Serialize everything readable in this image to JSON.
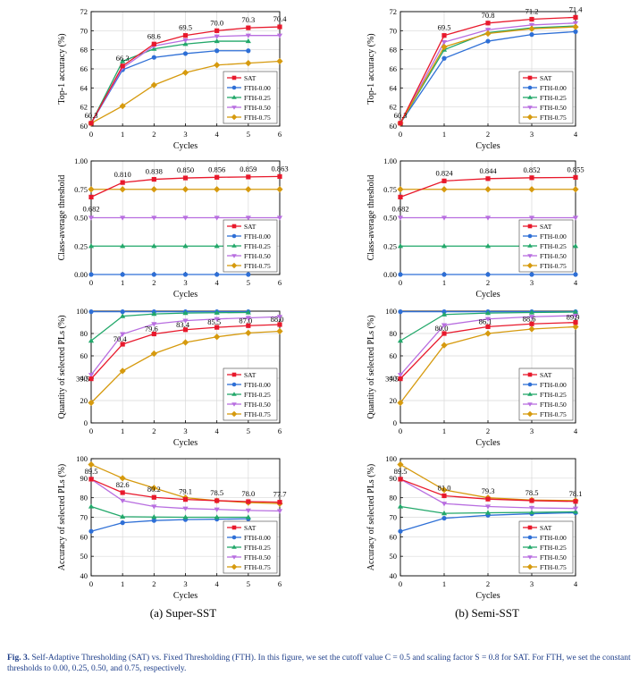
{
  "figure": {
    "subcaptions": [
      "(a) Super-SST",
      "(b) Semi-SST"
    ],
    "caption_label": "Fig. 3.",
    "caption_text": "Self-Adaptive Thresholding (SAT) vs. Fixed Thresholding (FTH). In this figure, we set the cutoff value C = 0.5 and scaling factor S = 0.8 for SAT. For FTH, we set the constant thresholds to 0.00, 0.25, 0.50, and 0.75, respectively."
  },
  "legend_entries": [
    "SAT",
    "FTH-0.00",
    "FTH-0.25",
    "FTH-0.50",
    "FTH-0.75"
  ],
  "colors": {
    "SAT": "#e8192c",
    "FTH-0.00": "#2e6fd6",
    "FTH-0.25": "#22a86a",
    "FTH-0.50": "#b86ee0",
    "FTH-0.75": "#d69a0e",
    "grid": "#d8d8d8"
  },
  "chart_data": [
    {
      "id": "a-top1",
      "type": "line",
      "panel": "Super-SST",
      "xlabel": "Cycles",
      "ylabel": "Top-1 accuracy (%)",
      "xlim": [
        0,
        6
      ],
      "ylim": [
        60,
        72
      ],
      "xticks": [
        "0",
        "1",
        "2",
        "3",
        "4",
        "5",
        "6"
      ],
      "yticks": [
        "60",
        "62",
        "64",
        "66",
        "68",
        "70",
        "72"
      ],
      "legend_position": "bottom-right",
      "series": [
        {
          "name": "SAT",
          "x": [
            0,
            1,
            2,
            3,
            4,
            5,
            6
          ],
          "values": [
            60.3,
            66.3,
            68.6,
            69.5,
            70.0,
            70.3,
            70.4
          ],
          "labels": [
            "60.3",
            "66.3",
            "68.6",
            "69.5",
            "70.0",
            "70.3",
            "70.4"
          ]
        },
        {
          "name": "FTH-0.00",
          "x": [
            0,
            1,
            2,
            3,
            4,
            5
          ],
          "values": [
            60.3,
            65.9,
            67.2,
            67.6,
            67.9,
            67.9
          ]
        },
        {
          "name": "FTH-0.25",
          "x": [
            0,
            1,
            2,
            3,
            4,
            5
          ],
          "values": [
            60.3,
            66.8,
            68.1,
            68.6,
            68.9,
            68.9
          ]
        },
        {
          "name": "FTH-0.50",
          "x": [
            0,
            1,
            2,
            3,
            4,
            5,
            6
          ],
          "values": [
            60.3,
            66.1,
            68.4,
            69.0,
            69.4,
            69.5,
            69.5
          ]
        },
        {
          "name": "FTH-0.75",
          "x": [
            0,
            1,
            2,
            3,
            4,
            5,
            6
          ],
          "values": [
            60.3,
            62.1,
            64.3,
            65.6,
            66.4,
            66.6,
            66.8
          ]
        }
      ]
    },
    {
      "id": "b-top1",
      "type": "line",
      "panel": "Semi-SST",
      "xlabel": "Cycles",
      "ylabel": "Top-1 accuracy (%)",
      "xlim": [
        0,
        4
      ],
      "ylim": [
        60,
        72
      ],
      "xticks": [
        "0",
        "1",
        "2",
        "3",
        "4"
      ],
      "yticks": [
        "60",
        "62",
        "64",
        "66",
        "68",
        "70",
        "72"
      ],
      "legend_position": "bottom-right",
      "series": [
        {
          "name": "SAT",
          "x": [
            0,
            1,
            2,
            3,
            4
          ],
          "values": [
            60.3,
            69.5,
            70.8,
            71.2,
            71.4
          ],
          "labels": [
            "60.3",
            "69.5",
            "70.8",
            "71.2",
            "71.4"
          ]
        },
        {
          "name": "FTH-0.00",
          "x": [
            0,
            1,
            2,
            3,
            4
          ],
          "values": [
            60.3,
            67.1,
            68.9,
            69.6,
            69.9
          ]
        },
        {
          "name": "FTH-0.25",
          "x": [
            0,
            1,
            2,
            3,
            4
          ],
          "values": [
            60.3,
            68.0,
            69.8,
            70.3,
            70.5
          ]
        },
        {
          "name": "FTH-0.50",
          "x": [
            0,
            1,
            2,
            3,
            4
          ],
          "values": [
            60.3,
            68.8,
            70.1,
            70.6,
            70.8
          ]
        },
        {
          "name": "FTH-0.75",
          "x": [
            0,
            1,
            2,
            3,
            4
          ],
          "values": [
            60.3,
            68.3,
            69.7,
            70.2,
            70.4
          ]
        }
      ]
    },
    {
      "id": "a-thresh",
      "type": "line",
      "panel": "Super-SST",
      "xlabel": "Cycles",
      "ylabel": "Class-average threshold",
      "xlim": [
        0,
        6
      ],
      "ylim": [
        0.0,
        1.0
      ],
      "xticks": [
        "0",
        "1",
        "2",
        "3",
        "4",
        "5",
        "6"
      ],
      "yticks": [
        "0.00",
        "0.25",
        "0.50",
        "0.75",
        "1.00"
      ],
      "legend_position": "bottom-right",
      "series": [
        {
          "name": "SAT",
          "x": [
            0,
            1,
            2,
            3,
            4,
            5,
            6
          ],
          "values": [
            0.682,
            0.81,
            0.838,
            0.85,
            0.856,
            0.859,
            0.863
          ],
          "labels": [
            "0.682",
            "0.810",
            "0.838",
            "0.850",
            "0.856",
            "0.859",
            "0.863"
          ]
        },
        {
          "name": "FTH-0.00",
          "x": [
            0,
            1,
            2,
            3,
            4,
            5
          ],
          "values": [
            0,
            0,
            0,
            0,
            0,
            0
          ]
        },
        {
          "name": "FTH-0.25",
          "x": [
            0,
            1,
            2,
            3,
            4,
            5
          ],
          "values": [
            0.25,
            0.25,
            0.25,
            0.25,
            0.25,
            0.25
          ]
        },
        {
          "name": "FTH-0.50",
          "x": [
            0,
            1,
            2,
            3,
            4,
            5,
            6
          ],
          "values": [
            0.5,
            0.5,
            0.5,
            0.5,
            0.5,
            0.5,
            0.5
          ]
        },
        {
          "name": "FTH-0.75",
          "x": [
            0,
            1,
            2,
            3,
            4,
            5,
            6
          ],
          "values": [
            0.75,
            0.75,
            0.75,
            0.75,
            0.75,
            0.75,
            0.75
          ]
        }
      ]
    },
    {
      "id": "b-thresh",
      "type": "line",
      "panel": "Semi-SST",
      "xlabel": "Cycles",
      "ylabel": "Class-average threshold",
      "xlim": [
        0,
        4
      ],
      "ylim": [
        0.0,
        1.0
      ],
      "xticks": [
        "0",
        "1",
        "2",
        "3",
        "4"
      ],
      "yticks": [
        "0.00",
        "0.25",
        "0.50",
        "0.75",
        "1.00"
      ],
      "legend_position": "bottom-right",
      "series": [
        {
          "name": "SAT",
          "x": [
            0,
            1,
            2,
            3,
            4
          ],
          "values": [
            0.682,
            0.824,
            0.844,
            0.852,
            0.855
          ],
          "labels": [
            "0.682",
            "0.824",
            "0.844",
            "0.852",
            "0.855"
          ]
        },
        {
          "name": "FTH-0.00",
          "x": [
            0,
            1,
            2,
            3,
            4
          ],
          "values": [
            0,
            0,
            0,
            0,
            0
          ]
        },
        {
          "name": "FTH-0.25",
          "x": [
            0,
            1,
            2,
            3,
            4
          ],
          "values": [
            0.25,
            0.25,
            0.25,
            0.25,
            0.25
          ]
        },
        {
          "name": "FTH-0.50",
          "x": [
            0,
            1,
            2,
            3,
            4
          ],
          "values": [
            0.5,
            0.5,
            0.5,
            0.5,
            0.5
          ]
        },
        {
          "name": "FTH-0.75",
          "x": [
            0,
            1,
            2,
            3,
            4
          ],
          "values": [
            0.75,
            0.75,
            0.75,
            0.75,
            0.75
          ]
        }
      ]
    },
    {
      "id": "a-quantity",
      "type": "line",
      "panel": "Super-SST",
      "xlabel": "Cycles",
      "ylabel": "Quantity of selected PLs (%)",
      "xlim": [
        0,
        6
      ],
      "ylim": [
        0,
        100
      ],
      "xticks": [
        "0",
        "1",
        "2",
        "3",
        "4",
        "5",
        "6"
      ],
      "yticks": [
        "0",
        "20",
        "40",
        "60",
        "80",
        "100"
      ],
      "legend_position": "bottom-right",
      "series": [
        {
          "name": "SAT",
          "x": [
            0,
            1,
            2,
            3,
            4,
            5,
            6
          ],
          "values": [
            39.5,
            70.4,
            79.6,
            83.4,
            85.5,
            87.0,
            88.0
          ],
          "labels": [
            "39.5",
            "70.4",
            "79.6",
            "83.4",
            "85.5",
            "87.0",
            "88.0"
          ]
        },
        {
          "name": "FTH-0.00",
          "x": [
            0,
            1,
            2,
            3,
            4,
            5
          ],
          "values": [
            99.5,
            99.5,
            99.5,
            99.5,
            99.5,
            99.5
          ]
        },
        {
          "name": "FTH-0.25",
          "x": [
            0,
            1,
            2,
            3,
            4,
            5
          ],
          "values": [
            73.5,
            95.5,
            97.5,
            98.3,
            98.6,
            98.8
          ]
        },
        {
          "name": "FTH-0.50",
          "x": [
            0,
            1,
            2,
            3,
            4,
            5,
            6
          ],
          "values": [
            43.0,
            79.5,
            88.5,
            91.5,
            93.0,
            94.0,
            95.0
          ]
        },
        {
          "name": "FTH-0.75",
          "x": [
            0,
            1,
            2,
            3,
            4,
            5,
            6
          ],
          "values": [
            18.0,
            46.5,
            62.0,
            72.0,
            77.0,
            80.5,
            82.0
          ]
        }
      ]
    },
    {
      "id": "b-quantity",
      "type": "line",
      "panel": "Semi-SST",
      "xlabel": "Cycles",
      "ylabel": "Quantity of selected PLs (%)",
      "xlim": [
        0,
        4
      ],
      "ylim": [
        0,
        100
      ],
      "xticks": [
        "0",
        "1",
        "2",
        "3",
        "4"
      ],
      "yticks": [
        "0",
        "20",
        "40",
        "60",
        "80",
        "100"
      ],
      "legend_position": "bottom-right",
      "series": [
        {
          "name": "SAT",
          "x": [
            0,
            1,
            2,
            3,
            4
          ],
          "values": [
            39.5,
            80.0,
            86.1,
            88.6,
            89.9
          ],
          "labels": [
            "39.5",
            "80.0",
            "86.1",
            "88.6",
            "89.9"
          ]
        },
        {
          "name": "FTH-0.00",
          "x": [
            0,
            1,
            2,
            3,
            4
          ],
          "values": [
            99.5,
            99.5,
            99.5,
            99.5,
            99.5
          ]
        },
        {
          "name": "FTH-0.25",
          "x": [
            0,
            1,
            2,
            3,
            4
          ],
          "values": [
            73.5,
            97.0,
            98.3,
            98.8,
            99.2
          ]
        },
        {
          "name": "FTH-0.50",
          "x": [
            0,
            1,
            2,
            3,
            4
          ],
          "values": [
            43.0,
            87.5,
            93.0,
            95.0,
            96.0
          ]
        },
        {
          "name": "FTH-0.75",
          "x": [
            0,
            1,
            2,
            3,
            4
          ],
          "values": [
            18.0,
            69.5,
            80.0,
            84.0,
            86.0
          ]
        }
      ]
    },
    {
      "id": "a-accuracy",
      "type": "line",
      "panel": "Super-SST",
      "xlabel": "Cycles",
      "ylabel": "Accuracy of selected PLs (%)",
      "xlim": [
        0,
        6
      ],
      "ylim": [
        40,
        100
      ],
      "xticks": [
        "0",
        "1",
        "2",
        "3",
        "4",
        "5",
        "6"
      ],
      "yticks": [
        "40",
        "50",
        "60",
        "70",
        "80",
        "90",
        "100"
      ],
      "legend_position": "bottom-right",
      "series": [
        {
          "name": "SAT",
          "x": [
            0,
            1,
            2,
            3,
            4,
            5,
            6
          ],
          "values": [
            89.5,
            82.6,
            80.2,
            79.1,
            78.5,
            78.0,
            77.7
          ],
          "labels": [
            "89.5",
            "82.6",
            "80.2",
            "79.1",
            "78.5",
            "78.0",
            "77.7"
          ]
        },
        {
          "name": "FTH-0.00",
          "x": [
            0,
            1,
            2,
            3,
            4,
            5
          ],
          "values": [
            62.8,
            67.2,
            68.3,
            68.8,
            69.0,
            69.2
          ]
        },
        {
          "name": "FTH-0.25",
          "x": [
            0,
            1,
            2,
            3,
            4,
            5
          ],
          "values": [
            75.5,
            70.3,
            70.1,
            70.0,
            70.0,
            70.0
          ]
        },
        {
          "name": "FTH-0.50",
          "x": [
            0,
            1,
            2,
            3,
            4,
            5,
            6
          ],
          "values": [
            89.5,
            78.5,
            75.5,
            74.5,
            74.0,
            73.5,
            73.2
          ]
        },
        {
          "name": "FTH-0.75",
          "x": [
            0,
            1,
            2,
            3,
            4,
            5,
            6
          ],
          "values": [
            97.0,
            90.0,
            85.0,
            80.0,
            78.5,
            77.5,
            77.0
          ]
        }
      ]
    },
    {
      "id": "b-accuracy",
      "type": "line",
      "panel": "Semi-SST",
      "xlabel": "Cycles",
      "ylabel": "Accuracy of selected PLs (%)",
      "xlim": [
        0,
        4
      ],
      "ylim": [
        40,
        100
      ],
      "xticks": [
        "0",
        "1",
        "2",
        "3",
        "4"
      ],
      "yticks": [
        "40",
        "50",
        "60",
        "70",
        "80",
        "90",
        "100"
      ],
      "legend_position": "bottom-right",
      "series": [
        {
          "name": "SAT",
          "x": [
            0,
            1,
            2,
            3,
            4
          ],
          "values": [
            89.5,
            81.0,
            79.3,
            78.5,
            78.1
          ],
          "labels": [
            "89.5",
            "81.0",
            "79.3",
            "78.5",
            "78.1"
          ]
        },
        {
          "name": "FTH-0.00",
          "x": [
            0,
            1,
            2,
            3,
            4
          ],
          "values": [
            62.8,
            69.5,
            71.0,
            71.8,
            72.3
          ]
        },
        {
          "name": "FTH-0.25",
          "x": [
            0,
            1,
            2,
            3,
            4
          ],
          "values": [
            75.5,
            72.0,
            72.3,
            72.5,
            72.8
          ]
        },
        {
          "name": "FTH-0.50",
          "x": [
            0,
            1,
            2,
            3,
            4
          ],
          "values": [
            89.5,
            77.0,
            75.5,
            74.8,
            74.5
          ]
        },
        {
          "name": "FTH-0.75",
          "x": [
            0,
            1,
            2,
            3,
            4
          ],
          "values": [
            97.0,
            84.0,
            80.0,
            78.8,
            78.5
          ]
        }
      ]
    }
  ]
}
